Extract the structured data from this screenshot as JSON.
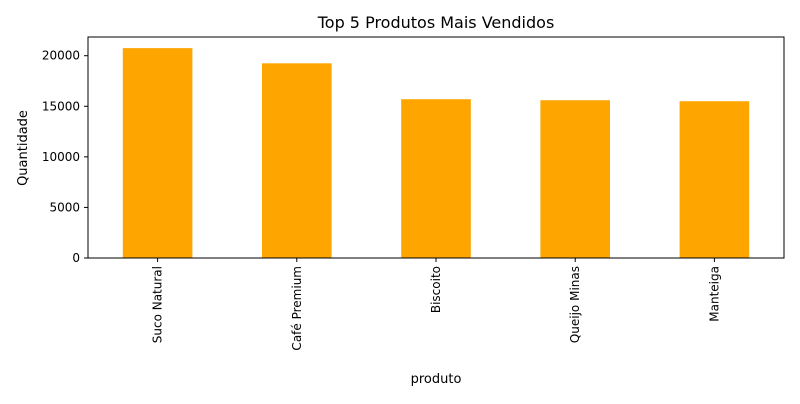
{
  "chart_data": {
    "type": "bar",
    "title": "Top 5 Produtos Mais Vendidos",
    "xlabel": "produto",
    "ylabel": "Quantidade",
    "categories": [
      "Suco Natural",
      "Café Premium",
      "Biscoito",
      "Queijo Minas",
      "Manteiga"
    ],
    "values": [
      20750,
      19250,
      15700,
      15600,
      15500
    ],
    "ylim": [
      0,
      21850
    ],
    "yticks": [
      0,
      5000,
      10000,
      15000,
      20000
    ],
    "ytick_labels": [
      "0",
      "5000",
      "10000",
      "15000",
      "20000"
    ],
    "bar_color": "#ffa500",
    "grid": false,
    "legend": false
  }
}
